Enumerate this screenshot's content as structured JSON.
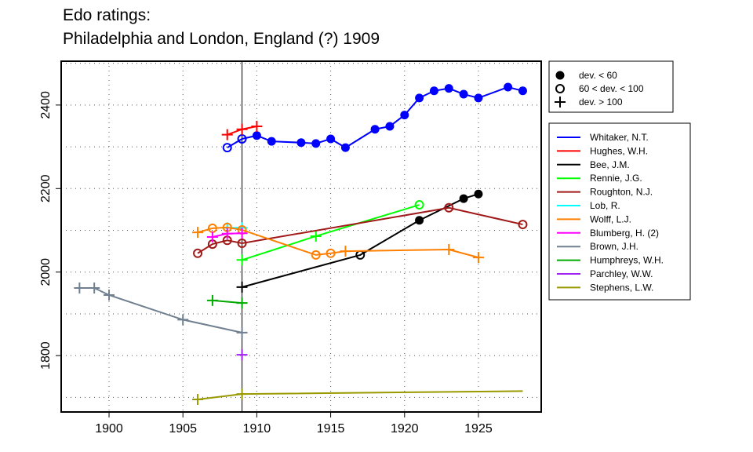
{
  "chart_data": {
    "type": "line",
    "title_line1": "Edo ratings:",
    "title_line2": "Philadelphia and London, England (?) 1909",
    "xlim": [
      1896.76,
      1929.25
    ],
    "ylim": [
      1665,
      2505
    ],
    "x_ticks": [
      1900,
      1905,
      1910,
      1915,
      1920,
      1925
    ],
    "y_ticks": [
      1800,
      2000,
      2200,
      2400
    ],
    "grid": true,
    "reference_line_x": 1909,
    "marker_legend": [
      {
        "marker": "filled",
        "label": "dev. < 60"
      },
      {
        "marker": "open",
        "label": "60 < dev. < 100"
      },
      {
        "marker": "plus",
        "label": "dev. > 100"
      }
    ],
    "legend_placement": "right",
    "series": [
      {
        "name": "Whitaker, N.T.",
        "color": "#0000FF",
        "points": [
          [
            1908,
            2298,
            "o"
          ],
          [
            1909,
            2319,
            "o"
          ],
          [
            1910,
            2327,
            "f"
          ],
          [
            1911,
            2313,
            "f"
          ],
          [
            1913,
            2310,
            "f"
          ],
          [
            1914,
            2308,
            "f"
          ],
          [
            1915,
            2319,
            "f"
          ],
          [
            1916,
            2298,
            "f"
          ],
          [
            1918,
            2342,
            "f"
          ],
          [
            1919,
            2349,
            "f"
          ],
          [
            1920,
            2376,
            "f"
          ],
          [
            1921,
            2417,
            "f"
          ],
          [
            1922,
            2434,
            "f"
          ],
          [
            1923,
            2440,
            "f"
          ],
          [
            1924,
            2426,
            "f"
          ],
          [
            1925,
            2417,
            "f"
          ],
          [
            1927,
            2443,
            "f"
          ],
          [
            1928,
            2434,
            "f"
          ]
        ]
      },
      {
        "name": "Hughes, W.H.",
        "color": "#FF0000",
        "points": [
          [
            1908,
            2329,
            "p"
          ],
          [
            1909,
            2342,
            "p"
          ],
          [
            1910,
            2349,
            "p"
          ]
        ]
      },
      {
        "name": "Bee, J.M.",
        "color": "#000000",
        "points": [
          [
            1909,
            1964,
            "p"
          ],
          [
            1917,
            2041,
            "o"
          ],
          [
            1921,
            2124,
            "f"
          ],
          [
            1924,
            2176,
            "f"
          ],
          [
            1925,
            2187,
            "f"
          ]
        ]
      },
      {
        "name": "Rennie, J.G.",
        "color": "#00FF00",
        "points": [
          [
            1909,
            2029,
            "p"
          ],
          [
            1914,
            2086,
            "p"
          ],
          [
            1921,
            2161,
            "o"
          ]
        ]
      },
      {
        "name": "Roughton, N.J.",
        "color": "#A01A1A",
        "points": [
          [
            1906,
            2045,
            "o"
          ],
          [
            1907,
            2067,
            "o"
          ],
          [
            1908,
            2076,
            "o"
          ],
          [
            1909,
            2069,
            "o"
          ],
          [
            1923,
            2154,
            "o"
          ],
          [
            1928,
            2114,
            "o"
          ]
        ]
      },
      {
        "name": "Lob, R.",
        "color": "#00FFFF",
        "points": [
          [
            1908,
            2106,
            "p"
          ],
          [
            1909,
            2106,
            "p"
          ]
        ]
      },
      {
        "name": "Wolff, L.J.",
        "color": "#FF7F00",
        "points": [
          [
            1906,
            2095,
            "p"
          ],
          [
            1907,
            2105,
            "o"
          ],
          [
            1908,
            2107,
            "o"
          ],
          [
            1909,
            2101,
            "o"
          ],
          [
            1914,
            2041,
            "o"
          ],
          [
            1915,
            2045,
            "o"
          ],
          [
            1916,
            2050,
            "p"
          ],
          [
            1923,
            2054,
            "p"
          ],
          [
            1925,
            2035,
            "p"
          ]
        ]
      },
      {
        "name": "Blumberg, H. (2)",
        "color": "#FF00FF",
        "points": [
          [
            1907,
            2084,
            "p"
          ],
          [
            1908,
            2092,
            "p"
          ],
          [
            1909,
            2093,
            "p"
          ]
        ]
      },
      {
        "name": "Brown, J.H.",
        "color": "#708090",
        "points": [
          [
            1898,
            1962,
            "p"
          ],
          [
            1899,
            1962,
            "p"
          ],
          [
            1900,
            1945,
            "p"
          ],
          [
            1905,
            1886,
            "p"
          ],
          [
            1909,
            1855,
            "p"
          ]
        ]
      },
      {
        "name": "Humphreys, W.H.",
        "color": "#00AA00",
        "points": [
          [
            1907,
            1932,
            "p"
          ],
          [
            1909,
            1926,
            "p"
          ]
        ]
      },
      {
        "name": "Parchley, W.W.",
        "color": "#A020F0",
        "points": [
          [
            1909,
            1802,
            "p"
          ]
        ]
      },
      {
        "name": "Stephens, L.W.",
        "color": "#999900",
        "points": [
          [
            1906,
            1695,
            "p"
          ],
          [
            1909,
            1708,
            "p"
          ],
          [
            1928,
            1715,
            "n"
          ]
        ]
      }
    ]
  }
}
